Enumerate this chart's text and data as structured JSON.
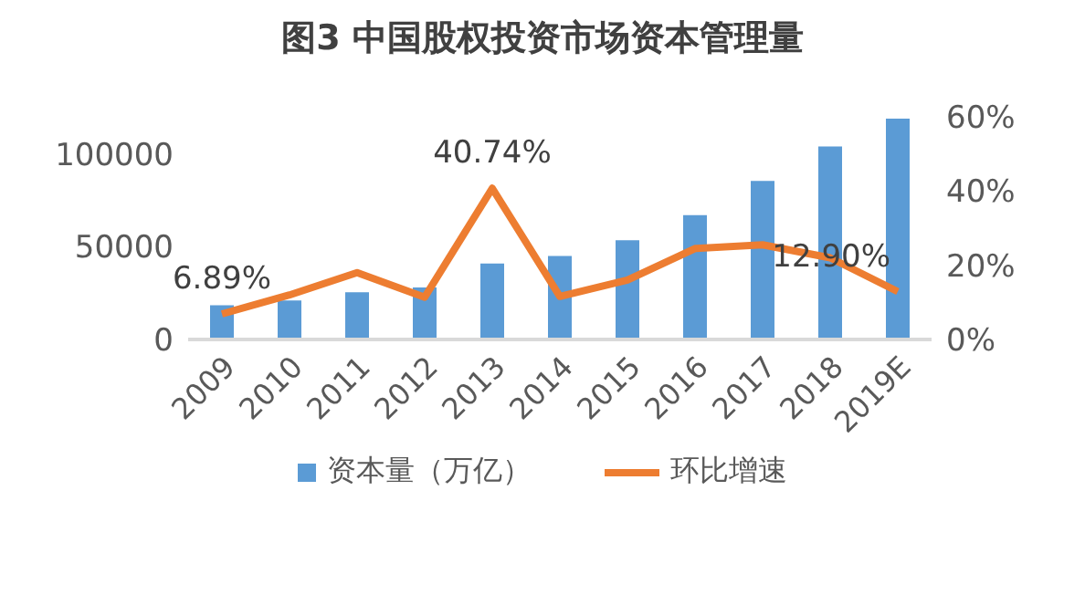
{
  "chart_data": {
    "type": "bar",
    "title": "图3 中国股权投资市场资本管理量",
    "categories": [
      "2009",
      "2010",
      "2011",
      "2012",
      "2013",
      "2014",
      "2015",
      "2016",
      "2017",
      "2018",
      "2019E"
    ],
    "series": [
      {
        "name": "资本量（万亿）",
        "color": "#5b9bd5",
        "values": [
          18500,
          21000,
          25500,
          28000,
          41000,
          45000,
          53500,
          67000,
          85500,
          104000,
          119000
        ]
      },
      {
        "name": "环比增速",
        "type": "line",
        "axis": "y2",
        "color": "#ed7d31",
        "values": [
          6.89,
          12,
          18,
          11.4,
          40.74,
          11.6,
          16,
          24.5,
          25.5,
          22,
          12.9
        ],
        "value_labels": [
          "6.89%",
          null,
          null,
          null,
          "40.74%",
          null,
          null,
          null,
          null,
          null,
          "12.90%"
        ]
      }
    ],
    "ylim": [
      0,
      120000
    ],
    "yticks": [
      0,
      50000,
      100000
    ],
    "y2lim": [
      0,
      60
    ],
    "y2ticks": [
      {
        "value": 0,
        "label": "0%"
      },
      {
        "value": 20,
        "label": "20%"
      },
      {
        "value": 40,
        "label": "40%"
      },
      {
        "value": 60,
        "label": "60%"
      }
    ],
    "grid": false,
    "legend": "bottom",
    "marker": "none"
  }
}
